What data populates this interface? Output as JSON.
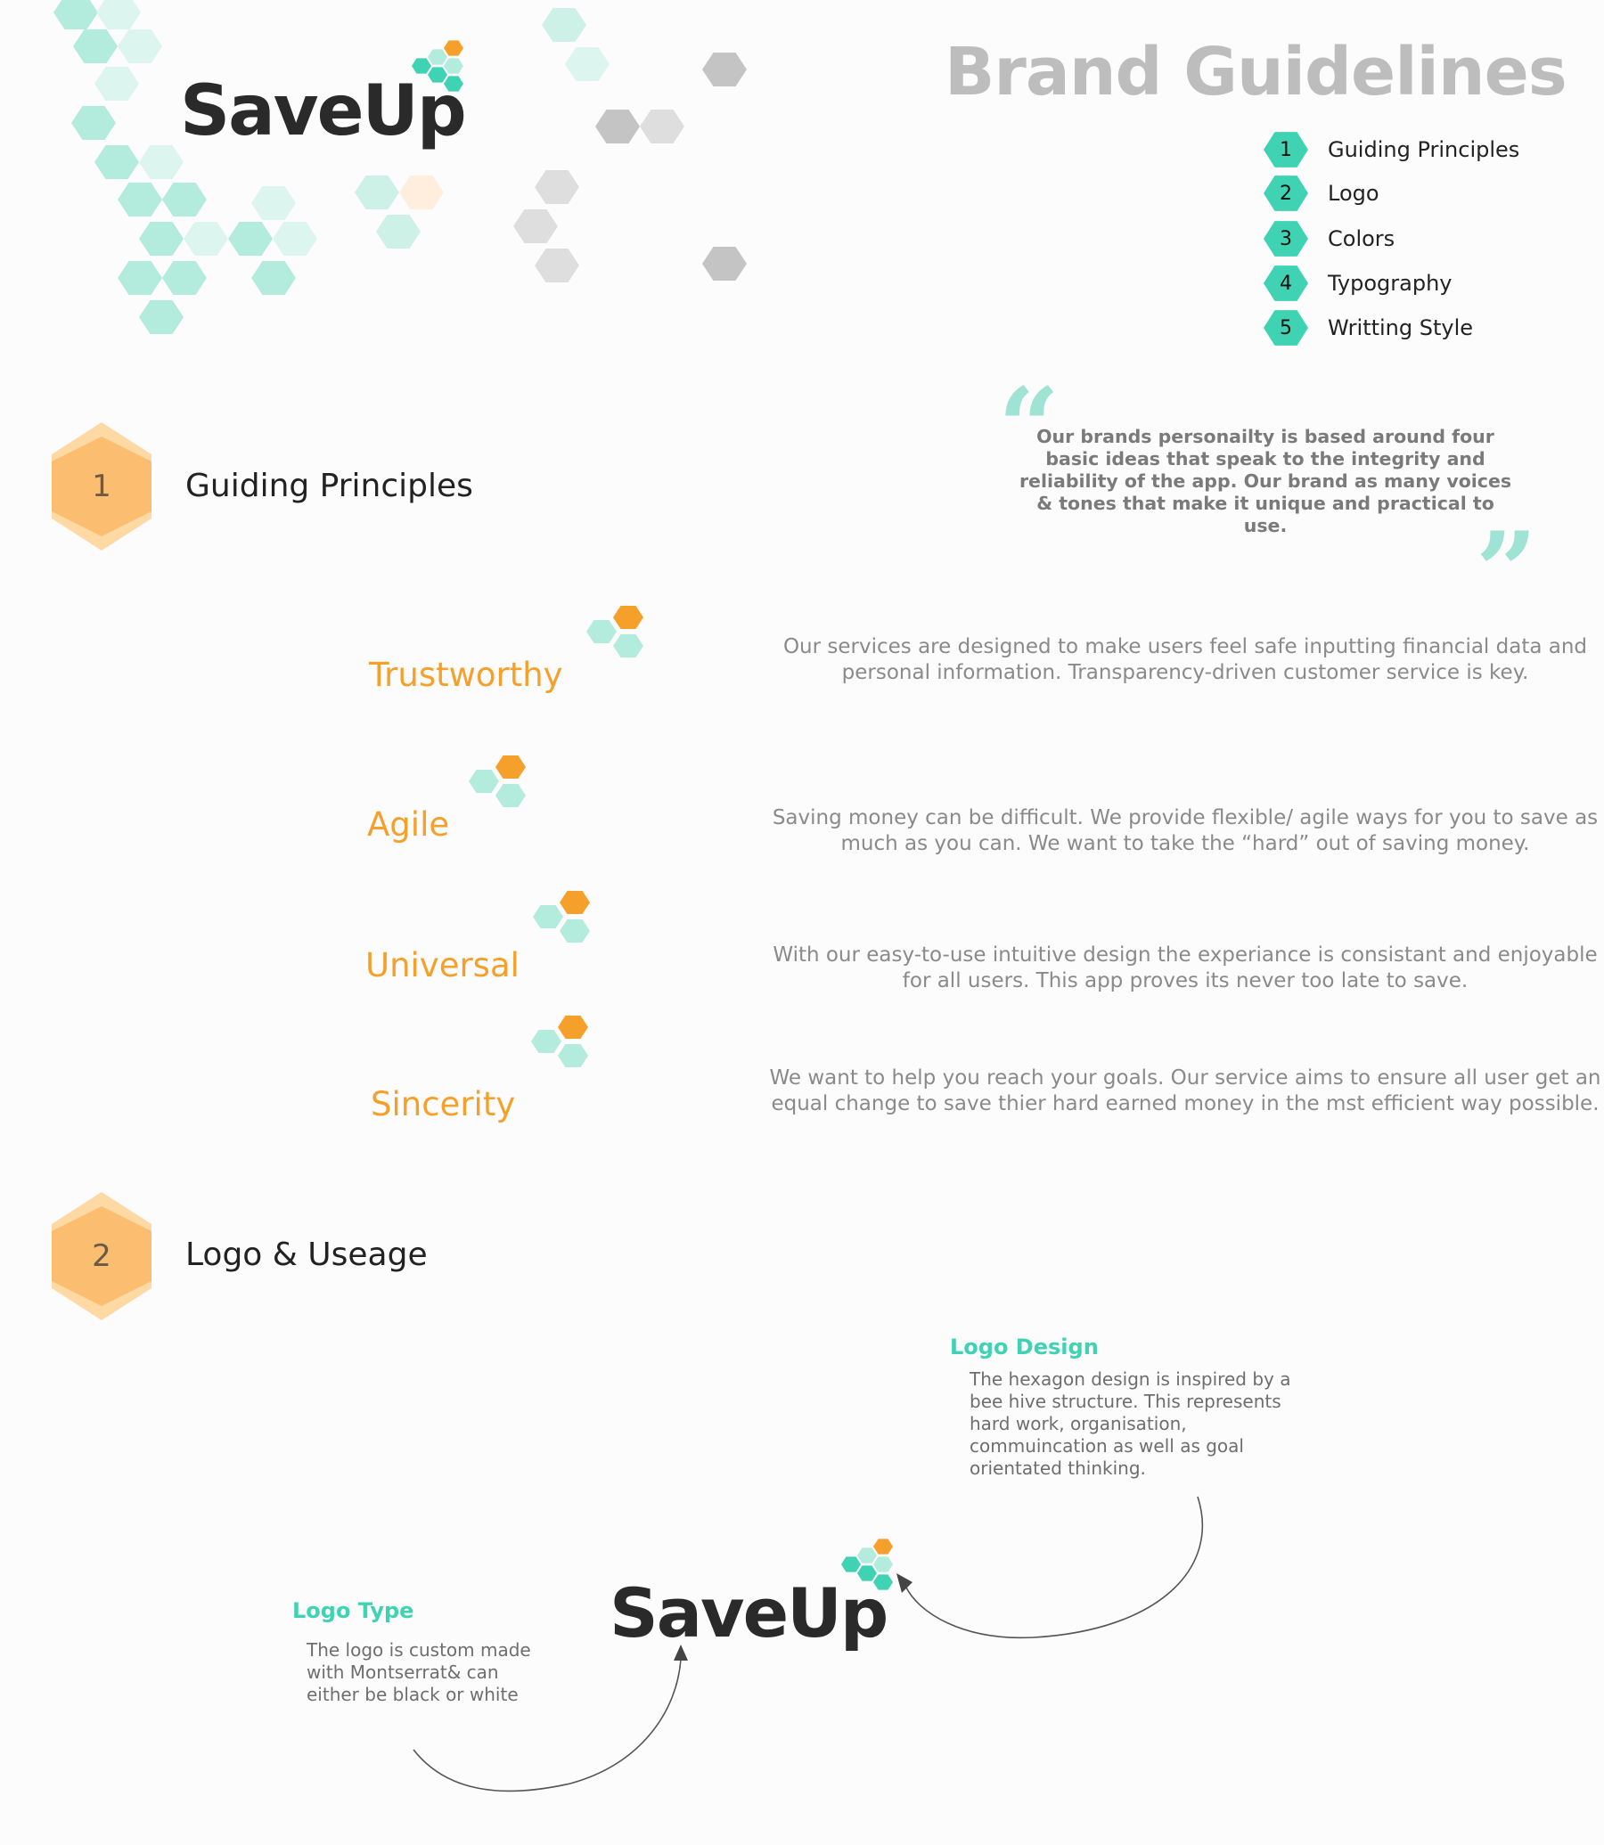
{
  "brand": {
    "name": "SaveUp"
  },
  "header": {
    "title": "Brand Guidelines"
  },
  "toc": [
    {
      "num": "1",
      "label": "Guiding Principles"
    },
    {
      "num": "2",
      "label": "Logo"
    },
    {
      "num": "3",
      "label": "Colors"
    },
    {
      "num": "4",
      "label": "Typography"
    },
    {
      "num": "5",
      "label": "Writting Style"
    }
  ],
  "section1": {
    "num": "1",
    "title": "Guiding Principles",
    "quote": "Our brands personailty is based around four basic ideas that speak to the integrity and reliability of the app. Our brand as many voices & tones that make it unique and practical to use.",
    "principles": [
      {
        "name": "Trustworthy",
        "desc": "Our services are designed to make users feel safe inputting financial data and personal information. Transparency-driven customer service is key."
      },
      {
        "name": "Agile",
        "desc": "Saving money can be difficult. We provide flexible/ agile ways for you to save as much as you can. We want to take the “hard” out of saving money."
      },
      {
        "name": "Universal",
        "desc": "With our easy-to-use intuitive design the experiance is consistant and enjoyable for all users. This app proves its never too late to save."
      },
      {
        "name": "Sincerity",
        "desc": "We want to help you reach your goals. Our service aims to ensure all user get an equal change to save thier hard earned money in the mst efficient way possible."
      }
    ]
  },
  "section2": {
    "num": "2",
    "title": "Logo & Useage",
    "logo_design": {
      "label": "Logo Design",
      "text": "The hexagon design is inspired by a bee hive structure. This represents hard work, organisation, commuincation as well as goal orientated thinking."
    },
    "logo_type": {
      "label": "Logo Type",
      "text": "The logo is custom made with Montserrat& can either be black or white"
    }
  },
  "colors": {
    "teal": "#3fd3b4",
    "teal_light": "#b3ebdd",
    "orange": "#f6a02c",
    "orange_light": "#fbbd70",
    "gray": "#c4c4c4",
    "text_gray": "#8a8a8a"
  }
}
